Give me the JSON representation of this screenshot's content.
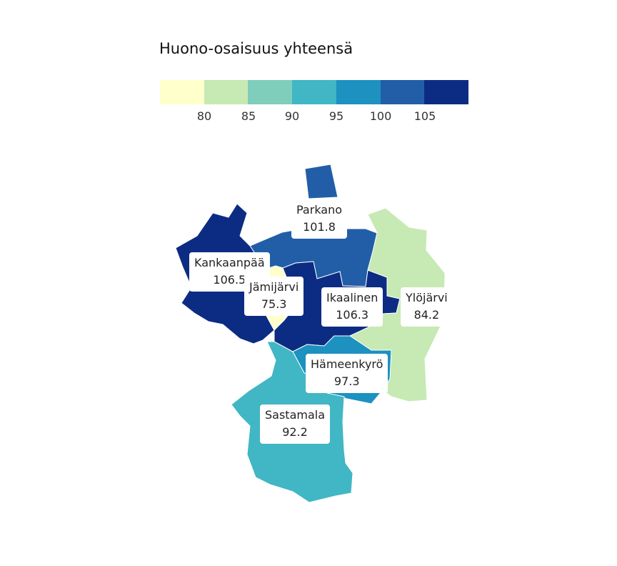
{
  "legend": {
    "title": "Huono-osaisuus yhteensä",
    "colors": [
      "#ffffcc",
      "#c7e9b4",
      "#7fcdbb",
      "#41b6c4",
      "#1d91c0",
      "#225ea8",
      "#0c2c84"
    ],
    "ticks": [
      "80",
      "85",
      "90",
      "95",
      "100",
      "105"
    ]
  },
  "regions": [
    {
      "name": "Parkano",
      "value": "101.8",
      "color": "#225ea8"
    },
    {
      "name": "Kankaanpää",
      "value": "106.5",
      "color": "#0c2c84"
    },
    {
      "name": "Jämijärvi",
      "value": "75.3",
      "color": "#ffffcc"
    },
    {
      "name": "Ikaalinen",
      "value": "106.3",
      "color": "#0c2c84"
    },
    {
      "name": "Ylöjärvi",
      "value": "84.2",
      "color": "#c7e9b4"
    },
    {
      "name": "Hämeenkyrö",
      "value": "97.3",
      "color": "#1d91c0"
    },
    {
      "name": "Sastamala",
      "value": "92.2",
      "color": "#41b6c4"
    }
  ]
}
